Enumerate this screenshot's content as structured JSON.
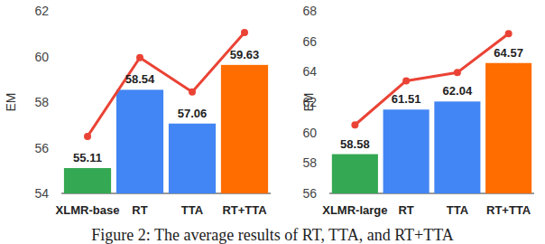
{
  "chart_data": [
    {
      "type": "bar",
      "y_label": "EM",
      "categories": [
        "XLMR-base",
        "RT",
        "TTA",
        "RT+TTA"
      ],
      "ylim": [
        54,
        62
      ],
      "yticks": [
        54,
        56,
        58,
        60,
        62
      ],
      "grid": false,
      "series": [
        {
          "type": "bar",
          "colors": [
            "#34a853",
            "#4285f4",
            "#4285f4",
            "#ff6d01"
          ],
          "data_labels": true,
          "values": [
            55.11,
            58.54,
            57.06,
            59.63
          ]
        },
        {
          "type": "line",
          "color": "#ea4335",
          "marker": "circle",
          "values": [
            56.5,
            59.95,
            58.45,
            61.05
          ]
        }
      ]
    },
    {
      "type": "bar",
      "y_label": "EM",
      "categories": [
        "XLMR-large",
        "RT",
        "TTA",
        "RT+TTA"
      ],
      "ylim": [
        56,
        68
      ],
      "yticks": [
        56,
        58,
        60,
        62,
        64,
        66,
        68
      ],
      "grid": false,
      "series": [
        {
          "type": "bar",
          "colors": [
            "#34a853",
            "#4285f4",
            "#4285f4",
            "#ff6d01"
          ],
          "data_labels": true,
          "values": [
            58.58,
            61.51,
            62.04,
            64.57
          ]
        },
        {
          "type": "line",
          "color": "#ea4335",
          "marker": "circle",
          "values": [
            60.5,
            63.4,
            63.95,
            66.5
          ]
        }
      ]
    }
  ],
  "caption": "Figure 2: The average results of RT, TTA, and RT+TTA"
}
